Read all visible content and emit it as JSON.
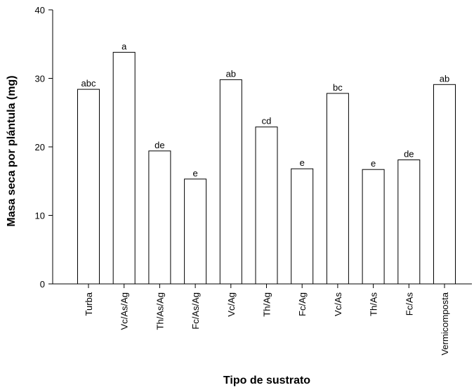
{
  "chart_data": {
    "type": "bar",
    "title": "",
    "xlabel": "Tipo de sustrato",
    "ylabel": "Masa seca por plántula (mg)",
    "ylim": [
      0,
      40
    ],
    "yticks": [
      0,
      10,
      20,
      30,
      40
    ],
    "grid": false,
    "categories": [
      "Turba",
      "Vc/As/Ag",
      "Th/As/Ag",
      "Fc/As/Ag",
      "Vc/Ag",
      "Th/Ag",
      "Fc/Ag",
      "Vc/As",
      "Th/As",
      "Fc/As",
      "Vermicomposta"
    ],
    "values": [
      28.4,
      33.8,
      19.4,
      15.3,
      29.8,
      22.9,
      16.8,
      27.8,
      16.7,
      18.1,
      29.1
    ],
    "bar_labels": [
      "abc",
      "a",
      "de",
      "e",
      "ab",
      "cd",
      "e",
      "bc",
      "e",
      "de",
      "ab"
    ],
    "colors": {
      "bar_fill": "#ffffff",
      "bar_stroke": "#000000",
      "axis": "#000000"
    }
  }
}
